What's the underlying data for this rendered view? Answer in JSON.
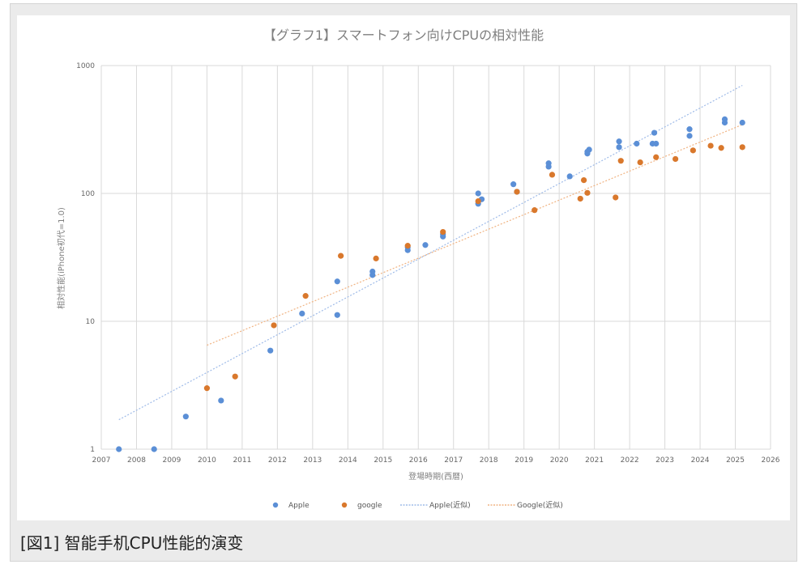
{
  "caption": "[図1] 智能手机CPU性能的演变",
  "chart_data": {
    "type": "scatter",
    "title": "【グラフ1】スマートフォン向けCPUの相対性能",
    "xlabel": "登場時期(西暦)",
    "ylabel": "相対性能(iPhone初代=1.0)",
    "xlim": [
      2007,
      2026
    ],
    "ylim": [
      1,
      1000
    ],
    "y_scale": "log",
    "x_ticks": [
      "2007",
      "2008",
      "2009",
      "2010",
      "2011",
      "2012",
      "2013",
      "2014",
      "2015",
      "2016",
      "2017",
      "2018",
      "2019",
      "2020",
      "2021",
      "2022",
      "2023",
      "2024",
      "2025",
      "2026"
    ],
    "y_ticks": [
      "1",
      "10",
      "100",
      "1000"
    ],
    "grid": true,
    "legend_position": "bottom",
    "series": [
      {
        "name": "Apple",
        "color": "#5b8fd6",
        "points": [
          [
            2007.5,
            1.0
          ],
          [
            2008.5,
            1.0
          ],
          [
            2009.4,
            1.8
          ],
          [
            2010.4,
            2.4
          ],
          [
            2011.8,
            5.9
          ],
          [
            2012.7,
            11.5
          ],
          [
            2013.7,
            20.5
          ],
          [
            2013.7,
            11.2
          ],
          [
            2014.7,
            23.0
          ],
          [
            2014.7,
            24.5
          ],
          [
            2015.7,
            36.0
          ],
          [
            2015.7,
            38.0
          ],
          [
            2016.2,
            39.5
          ],
          [
            2016.7,
            46.0
          ],
          [
            2016.7,
            48.0
          ],
          [
            2017.7,
            83.0
          ],
          [
            2017.7,
            100.0
          ],
          [
            2017.8,
            90.0
          ],
          [
            2018.7,
            118.0
          ],
          [
            2018.8,
            103.0
          ],
          [
            2019.7,
            162.0
          ],
          [
            2019.7,
            172.0
          ],
          [
            2020.3,
            136.0
          ],
          [
            2020.8,
            205.0
          ],
          [
            2020.8,
            212.0
          ],
          [
            2020.85,
            220.0
          ],
          [
            2021.7,
            230.0
          ],
          [
            2021.7,
            255.0
          ],
          [
            2022.2,
            245.0
          ],
          [
            2022.65,
            245.0
          ],
          [
            2022.75,
            245.0
          ],
          [
            2022.7,
            298.0
          ],
          [
            2023.7,
            282.0
          ],
          [
            2023.7,
            318.0
          ],
          [
            2024.7,
            358.0
          ],
          [
            2024.7,
            380.0
          ],
          [
            2025.2,
            358.0
          ]
        ]
      },
      {
        "name": "google",
        "color": "#d9782c",
        "points": [
          [
            2010.0,
            3.0
          ],
          [
            2010.8,
            3.7
          ],
          [
            2011.9,
            9.3
          ],
          [
            2012.8,
            15.8
          ],
          [
            2013.8,
            32.5
          ],
          [
            2014.8,
            31.0
          ],
          [
            2015.7,
            39.0
          ],
          [
            2016.7,
            50.0
          ],
          [
            2017.7,
            87.0
          ],
          [
            2018.8,
            103.0
          ],
          [
            2019.3,
            74.0
          ],
          [
            2019.8,
            140.0
          ],
          [
            2020.6,
            91.0
          ],
          [
            2020.7,
            127.0
          ],
          [
            2020.8,
            101.0
          ],
          [
            2021.6,
            93.0
          ],
          [
            2021.75,
            180.0
          ],
          [
            2022.3,
            175.0
          ],
          [
            2022.75,
            192.0
          ],
          [
            2023.3,
            186.0
          ],
          [
            2023.8,
            217.0
          ],
          [
            2024.3,
            236.0
          ],
          [
            2024.6,
            227.0
          ],
          [
            2025.2,
            230.0
          ]
        ]
      }
    ],
    "trendlines": [
      {
        "name": "Apple(近似)",
        "color": "#9fbbe8",
        "from": [
          2007.5,
          1.7
        ],
        "to": [
          2025.2,
          700.0
        ]
      },
      {
        "name": "Google(近似)",
        "color": "#f0b382",
        "from": [
          2010.0,
          6.5
        ],
        "to": [
          2025.2,
          345.0
        ]
      }
    ]
  }
}
